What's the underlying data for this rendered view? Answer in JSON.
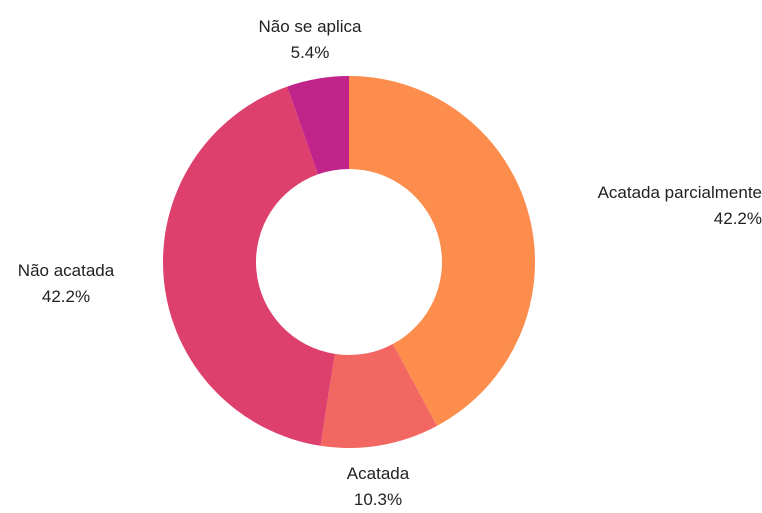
{
  "chart_data": {
    "type": "pie",
    "donut": true,
    "start": "top",
    "direction": "clockwise",
    "slices": [
      {
        "label": "Acatada parcialmente",
        "value": 42.2,
        "value_label": "42.2%",
        "color": "#fc8d4d"
      },
      {
        "label": "Acatada",
        "value": 10.3,
        "value_label": "10.3%",
        "color": "#f26761"
      },
      {
        "label": "Não acatada",
        "value": 42.2,
        "value_label": "42.2%",
        "color": "#de406e"
      },
      {
        "label": "Não se aplica",
        "value": 5.4,
        "value_label": "5.4%",
        "color": "#c0248a"
      }
    ]
  }
}
